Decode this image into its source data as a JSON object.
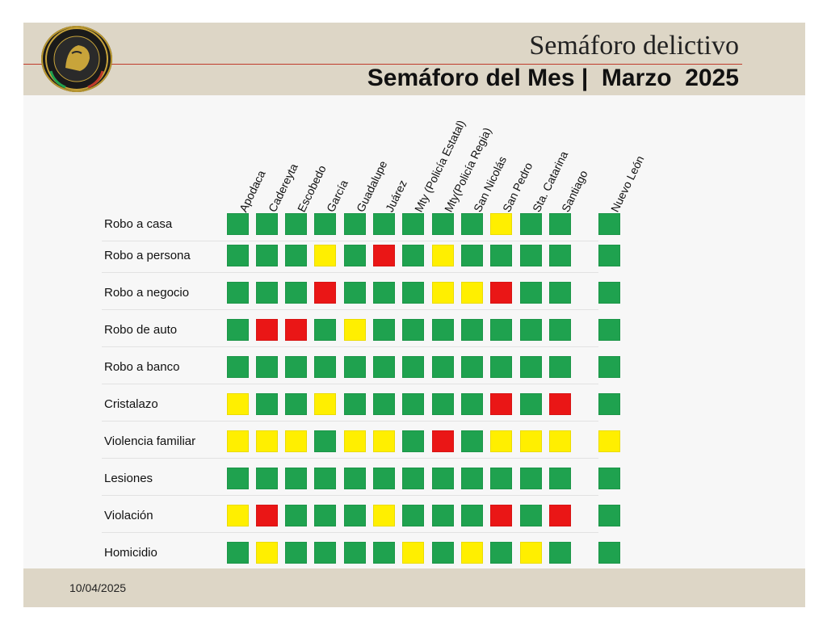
{
  "header": {
    "subtitle": "Semáforo delictivo",
    "title": "Semáforo del Mes |  Marzo  2025"
  },
  "footer": {
    "date": "10/04/2025"
  },
  "colors": {
    "green": "#1fa24f",
    "yellow": "#ffef00",
    "red": "#ea1616"
  },
  "columns": [
    "Apodaca",
    "Cadereyta",
    "Escobedo",
    "García",
    "Guadalupe",
    "Juárez",
    "Mty (Policía Estatal)",
    "Mty(Policía Regia)",
    "San Nicolás",
    "San Pedro",
    "Sta. Catarina",
    "Santiago",
    "Nuevo León"
  ],
  "rows": [
    {
      "label": "Robo a casa",
      "values": [
        "green",
        "green",
        "green",
        "green",
        "green",
        "green",
        "green",
        "green",
        "green",
        "yellow",
        "green",
        "green",
        "green"
      ]
    },
    {
      "label": "Robo a persona",
      "values": [
        "green",
        "green",
        "green",
        "yellow",
        "green",
        "red",
        "green",
        "yellow",
        "green",
        "green",
        "green",
        "green",
        "green"
      ]
    },
    {
      "label": "Robo a negocio",
      "values": [
        "green",
        "green",
        "green",
        "red",
        "green",
        "green",
        "green",
        "yellow",
        "yellow",
        "red",
        "green",
        "green",
        "green"
      ]
    },
    {
      "label": "Robo de auto",
      "values": [
        "green",
        "red",
        "red",
        "green",
        "yellow",
        "green",
        "green",
        "green",
        "green",
        "green",
        "green",
        "green",
        "green"
      ]
    },
    {
      "label": "Robo a banco",
      "values": [
        "green",
        "green",
        "green",
        "green",
        "green",
        "green",
        "green",
        "green",
        "green",
        "green",
        "green",
        "green",
        "green"
      ]
    },
    {
      "label": "Cristalazo",
      "values": [
        "yellow",
        "green",
        "green",
        "yellow",
        "green",
        "green",
        "green",
        "green",
        "green",
        "red",
        "green",
        "red",
        "green"
      ]
    },
    {
      "label": "Violencia familiar",
      "values": [
        "yellow",
        "yellow",
        "yellow",
        "green",
        "yellow",
        "yellow",
        "green",
        "red",
        "green",
        "yellow",
        "yellow",
        "yellow",
        "yellow"
      ]
    },
    {
      "label": "Lesiones",
      "values": [
        "green",
        "green",
        "green",
        "green",
        "green",
        "green",
        "green",
        "green",
        "green",
        "green",
        "green",
        "green",
        "green"
      ]
    },
    {
      "label": "Violación",
      "values": [
        "yellow",
        "red",
        "green",
        "green",
        "green",
        "yellow",
        "green",
        "green",
        "green",
        "red",
        "green",
        "red",
        "green"
      ]
    },
    {
      "label": "Homicidio",
      "values": [
        "green",
        "yellow",
        "green",
        "green",
        "green",
        "green",
        "yellow",
        "green",
        "yellow",
        "green",
        "yellow",
        "green",
        "green"
      ]
    }
  ]
}
